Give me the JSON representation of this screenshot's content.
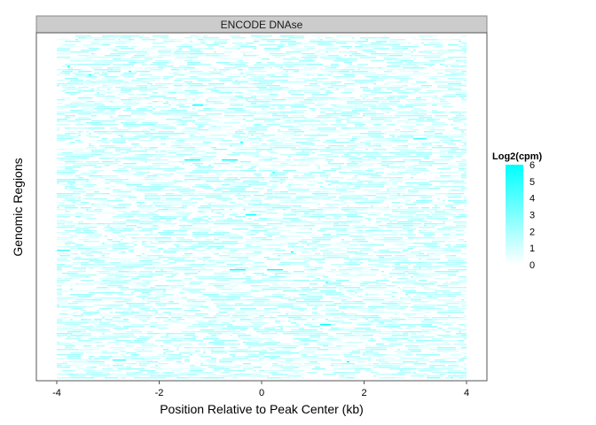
{
  "chart_data": {
    "type": "heatmap",
    "panel_title": "ENCODE DNAse",
    "xlabel": "Position Relative to Peak Center (kb)",
    "ylabel": "Genomic Regions",
    "xlim": [
      -4,
      4
    ],
    "x_ticks": [
      "-4",
      "-2",
      "0",
      "2",
      "4"
    ],
    "x_tick_values": [
      -4,
      -2,
      0,
      2,
      4
    ],
    "y_ticks": [],
    "legend": {
      "title": "Log2(cpm)",
      "ticks": [
        "6",
        "5",
        "4",
        "3",
        "2",
        "1",
        "0"
      ],
      "tick_values": [
        6,
        5,
        4,
        3,
        2,
        1,
        0
      ],
      "range": [
        0,
        6
      ],
      "low_color": "#ffffff",
      "high_color": "#00ffff",
      "placement": "right"
    },
    "fill_summary": "sparse low-intensity cyan signal across all regions, values mostly between 0 and 2 with a few hotter cells up to about 5",
    "grid": false
  }
}
